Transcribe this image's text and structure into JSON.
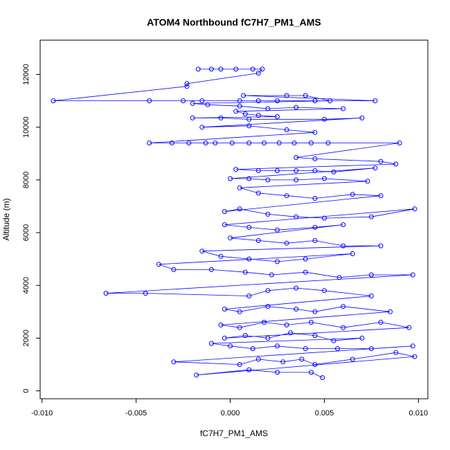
{
  "chart_data": {
    "type": "scatter",
    "title": "ATOM4 Northbound fC7H7_PM1_AMS",
    "xlabel": "fC7H7_PM1_AMS",
    "ylabel": "Altitude (m)",
    "xlim": [
      -0.0101,
      0.0105
    ],
    "ylim": [
      -300,
      13300
    ],
    "xticks": [
      -0.01,
      -0.005,
      0.0,
      0.005,
      0.01
    ],
    "xtick_labels": [
      "-0.010",
      "-0.005",
      "0.000",
      "0.005",
      "0.010"
    ],
    "yticks": [
      0,
      2000,
      4000,
      6000,
      8000,
      10000,
      12000
    ],
    "ytick_labels": [
      "0",
      "2000",
      "4000",
      "6000",
      "8000",
      "10000",
      "12000"
    ],
    "grid": false,
    "legend": "none",
    "marker": "open-circle",
    "connected": true,
    "color": "#0000ff",
    "series": [
      {
        "points": [
          [
            -0.0017,
            12200
          ],
          [
            -0.001,
            12200
          ],
          [
            -0.0005,
            12200
          ],
          [
            0.0003,
            12200
          ],
          [
            0.0012,
            12200
          ],
          [
            0.0017,
            12200
          ],
          [
            0.0015,
            12050
          ],
          [
            -0.0023,
            11650
          ],
          [
            -0.0023,
            11550
          ],
          [
            -0.0094,
            11000
          ],
          [
            -0.0043,
            11000
          ],
          [
            -0.0025,
            11000
          ],
          [
            -0.0015,
            11000
          ],
          [
            0.0005,
            11000
          ],
          [
            0.0015,
            11000
          ],
          [
            0.0025,
            11000
          ],
          [
            0.0045,
            11000
          ],
          [
            0.0077,
            11000
          ],
          [
            0.0007,
            11200
          ],
          [
            0.003,
            11200
          ],
          [
            0.004,
            11200
          ],
          [
            0.0053,
            11000
          ],
          [
            -0.002,
            10900
          ],
          [
            -0.0012,
            10850
          ],
          [
            0.0005,
            10800
          ],
          [
            0.002,
            10700
          ],
          [
            0.0035,
            10750
          ],
          [
            0.006,
            10700
          ],
          [
            0.0003,
            10600
          ],
          [
            0.0008,
            10500
          ],
          [
            0.0015,
            10450
          ],
          [
            0.0025,
            10400
          ],
          [
            -0.002,
            10350
          ],
          [
            -0.0005,
            10350
          ],
          [
            0.001,
            10300
          ],
          [
            0.005,
            10300
          ],
          [
            0.007,
            10350
          ],
          [
            -0.0015,
            10000
          ],
          [
            0.001,
            10050
          ],
          [
            0.003,
            9900
          ],
          [
            0.0045,
            9800
          ],
          [
            -0.0043,
            9400
          ],
          [
            -0.0031,
            9400
          ],
          [
            -0.0022,
            9400
          ],
          [
            -0.0013,
            9400
          ],
          [
            -0.0008,
            9400
          ],
          [
            0.0001,
            9400
          ],
          [
            0.001,
            9400
          ],
          [
            0.0018,
            9400
          ],
          [
            0.0026,
            9400
          ],
          [
            0.0034,
            9400
          ],
          [
            0.0043,
            9400
          ],
          [
            0.0052,
            9400
          ],
          [
            0.009,
            9400
          ],
          [
            0.0035,
            8850
          ],
          [
            0.0045,
            8800
          ],
          [
            0.008,
            8700
          ],
          [
            0.0088,
            8600
          ],
          [
            0.0003,
            8400
          ],
          [
            0.0015,
            8350
          ],
          [
            0.0025,
            8350
          ],
          [
            0.0035,
            8350
          ],
          [
            0.0045,
            8350
          ],
          [
            0.0055,
            8300
          ],
          [
            0.0077,
            8450
          ],
          [
            0.0,
            8050
          ],
          [
            0.001,
            8050
          ],
          [
            0.002,
            8000
          ],
          [
            0.0035,
            8000
          ],
          [
            0.005,
            8050
          ],
          [
            0.0073,
            7950
          ],
          [
            0.0005,
            7700
          ],
          [
            0.0015,
            7500
          ],
          [
            0.003,
            7400
          ],
          [
            0.0045,
            7300
          ],
          [
            0.0065,
            7450
          ],
          [
            0.008,
            7400
          ],
          [
            -0.0003,
            6800
          ],
          [
            0.0005,
            6900
          ],
          [
            0.002,
            6700
          ],
          [
            0.0035,
            6600
          ],
          [
            0.005,
            6550
          ],
          [
            0.0075,
            6600
          ],
          [
            0.0098,
            6900
          ],
          [
            -0.0003,
            6300
          ],
          [
            0.001,
            6200
          ],
          [
            0.0025,
            6100
          ],
          [
            0.0045,
            6200
          ],
          [
            0.006,
            6300
          ],
          [
            0.0,
            5800
          ],
          [
            0.0015,
            5700
          ],
          [
            0.003,
            5600
          ],
          [
            0.0045,
            5700
          ],
          [
            0.006,
            5500
          ],
          [
            0.008,
            5500
          ],
          [
            -0.0015,
            5300
          ],
          [
            -0.0005,
            5100
          ],
          [
            0.001,
            5000
          ],
          [
            0.0025,
            4900
          ],
          [
            0.004,
            5000
          ],
          [
            0.0065,
            5200
          ],
          [
            -0.0038,
            4800
          ],
          [
            -0.003,
            4600
          ],
          [
            -0.001,
            4600
          ],
          [
            0.0008,
            4500
          ],
          [
            0.0022,
            4400
          ],
          [
            0.004,
            4500
          ],
          [
            0.0058,
            4300
          ],
          [
            0.0075,
            4400
          ],
          [
            0.0097,
            4400
          ],
          [
            -0.0066,
            3700
          ],
          [
            -0.0045,
            3700
          ],
          [
            0.001,
            3600
          ],
          [
            0.002,
            3800
          ],
          [
            0.0035,
            3900
          ],
          [
            0.005,
            3800
          ],
          [
            0.0075,
            3600
          ],
          [
            -0.0003,
            3100
          ],
          [
            0.0005,
            3000
          ],
          [
            0.002,
            3200
          ],
          [
            0.0035,
            3100
          ],
          [
            0.0045,
            3000
          ],
          [
            0.006,
            3200
          ],
          [
            0.0085,
            3000
          ],
          [
            -0.0005,
            2500
          ],
          [
            0.0005,
            2400
          ],
          [
            0.0018,
            2600
          ],
          [
            0.003,
            2500
          ],
          [
            0.0043,
            2600
          ],
          [
            0.006,
            2400
          ],
          [
            0.008,
            2600
          ],
          [
            0.0095,
            2400
          ],
          [
            -0.0003,
            2000
          ],
          [
            0.0008,
            2100
          ],
          [
            0.002,
            2000
          ],
          [
            0.0032,
            2200
          ],
          [
            0.0045,
            2100
          ],
          [
            0.0055,
            1900
          ],
          [
            0.007,
            2000
          ],
          [
            -0.001,
            1800
          ],
          [
            0.0,
            1700
          ],
          [
            0.0012,
            1600
          ],
          [
            0.0025,
            1700
          ],
          [
            0.004,
            1600
          ],
          [
            0.0057,
            1600
          ],
          [
            0.0075,
            1600
          ],
          [
            0.0097,
            1700
          ],
          [
            -0.003,
            1100
          ],
          [
            0.0005,
            1000
          ],
          [
            0.0015,
            1200
          ],
          [
            0.0028,
            1100
          ],
          [
            0.0038,
            1200
          ],
          [
            0.0045,
            1000
          ],
          [
            0.0065,
            1200
          ],
          [
            0.0088,
            1450
          ],
          [
            0.0098,
            1300
          ],
          [
            -0.0018,
            600
          ],
          [
            0.001,
            800
          ],
          [
            0.0025,
            700
          ],
          [
            0.0043,
            700
          ],
          [
            0.0049,
            500
          ]
        ]
      }
    ]
  }
}
